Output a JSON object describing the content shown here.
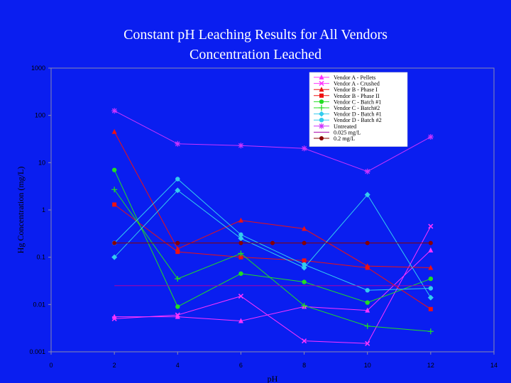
{
  "chart_data": {
    "type": "line",
    "title": "Constant pH Leaching Results for All Vendors",
    "subtitle": "Concentration Leached",
    "xlabel": "pH",
    "ylabel": "Hg Concentration (mg/L)",
    "xlim": [
      0,
      14
    ],
    "ylim": [
      0.001,
      1000
    ],
    "y_scale": "log",
    "x_ticks": [
      "0",
      "2",
      "4",
      "6",
      "8",
      "10",
      "12",
      "14"
    ],
    "y_ticks": [
      "0.001",
      "0.01",
      "0.1",
      "1",
      "10",
      "100",
      "1000"
    ],
    "grid": false,
    "legend_position": "top-right",
    "series": [
      {
        "name": "Vendor A - Pellets",
        "color": "#ff33ff",
        "marker": "triangle",
        "x": [
          2,
          4,
          6,
          8,
          10,
          12
        ],
        "y": [
          0.0055,
          0.0055,
          0.0045,
          0.009,
          0.0075,
          0.14
        ]
      },
      {
        "name": "Vendor A - Crushed",
        "color": "#ff33ff",
        "marker": "x",
        "x": [
          2,
          4,
          6,
          8,
          10,
          12
        ],
        "y": [
          0.005,
          0.006,
          0.015,
          0.0017,
          0.0015,
          0.45
        ]
      },
      {
        "name": "Vendor B - Phase I",
        "color": "#ee1111",
        "marker": "triangle",
        "x": [
          2,
          4,
          6,
          8,
          10,
          12
        ],
        "y": [
          45,
          0.15,
          0.6,
          0.4,
          0.065,
          0.06
        ]
      },
      {
        "name": "Vendor B - Phase II",
        "color": "#ee1111",
        "marker": "square",
        "x": [
          2,
          4,
          6,
          8,
          10,
          12
        ],
        "y": [
          1.3,
          0.13,
          0.1,
          0.085,
          0.06,
          0.008
        ]
      },
      {
        "name": "Vendor C - Batch #1",
        "color": "#22dd22",
        "marker": "circle",
        "x": [
          2,
          4,
          6,
          8,
          10,
          12
        ],
        "y": [
          7,
          0.009,
          0.045,
          0.03,
          0.011,
          0.035
        ]
      },
      {
        "name": "Vendor C - Batch#2",
        "color": "#22dd22",
        "marker": "plus",
        "x": [
          2,
          4,
          6,
          8,
          10,
          12
        ],
        "y": [
          2.7,
          0.035,
          0.12,
          0.0095,
          0.0035,
          0.0027
        ]
      },
      {
        "name": "Vendor D - Batch #1",
        "color": "#33ccee",
        "marker": "diamond",
        "x": [
          2,
          4,
          6,
          8,
          10,
          12
        ],
        "y": [
          0.1,
          2.6,
          0.25,
          0.06,
          2.1,
          0.014
        ]
      },
      {
        "name": "Vendor D - Batch #2",
        "color": "#33ccee",
        "marker": "circle",
        "x": [
          2,
          4,
          6,
          8,
          10,
          12
        ],
        "y": [
          0.2,
          4.5,
          0.3,
          0.07,
          0.02,
          0.022
        ]
      },
      {
        "name": "Untreated",
        "color": "#cc33ff",
        "marker": "asterisk",
        "x": [
          2,
          4,
          6,
          8,
          10,
          12
        ],
        "y": [
          125,
          25,
          23,
          20,
          6.5,
          35
        ]
      },
      {
        "name": "0.025 mg/L",
        "color": "#aa00aa",
        "marker": "none",
        "x": [
          2,
          4,
          6,
          8,
          10,
          12
        ],
        "y": [
          0.025,
          0.025,
          0.025,
          0.025,
          0.025,
          0.025
        ]
      },
      {
        "name": "0.2 mg/L",
        "color": "#880000",
        "marker": "dot",
        "x": [
          2,
          4,
          6,
          7,
          8,
          10,
          12
        ],
        "y": [
          0.2,
          0.2,
          0.2,
          0.2,
          0.2,
          0.2,
          0.2
        ]
      }
    ]
  }
}
